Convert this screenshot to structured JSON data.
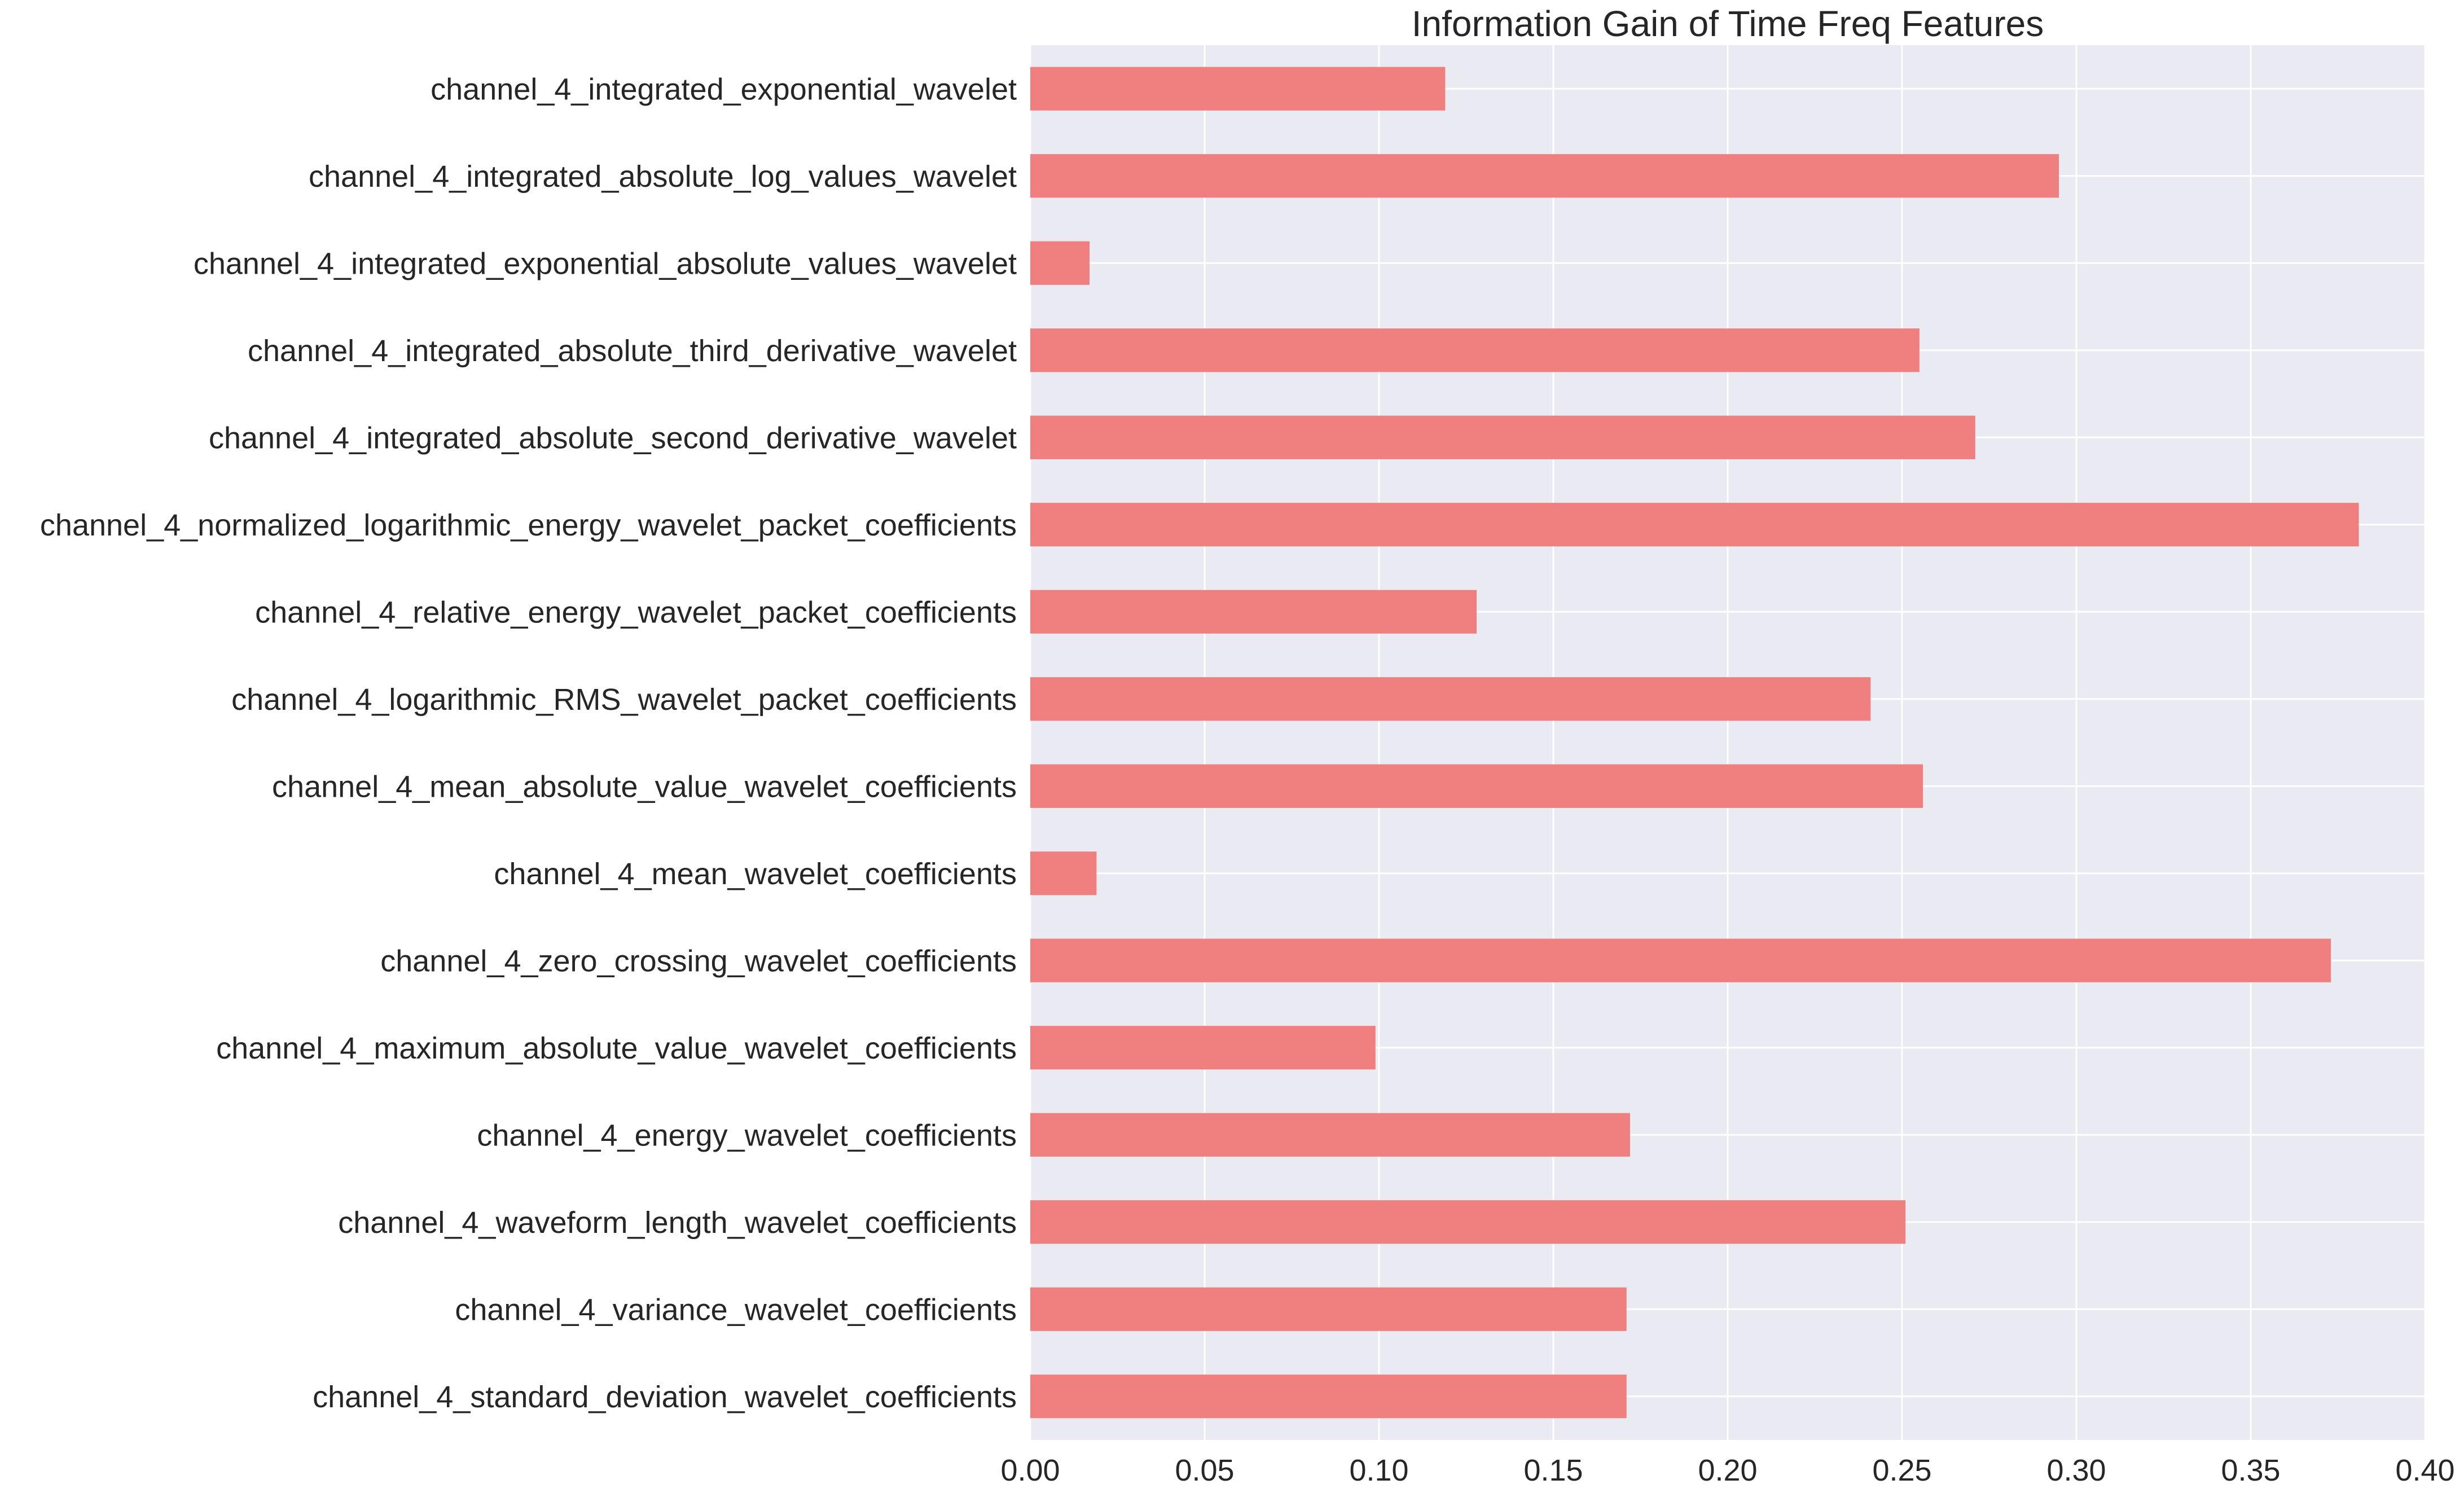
{
  "chart_data": {
    "type": "bar",
    "orientation": "horizontal",
    "title": "Information Gain of Time Freq Features",
    "xlabel": "",
    "ylabel": "",
    "xlim": [
      0.0,
      0.4
    ],
    "xticks": [
      "0.00",
      "0.05",
      "0.10",
      "0.15",
      "0.20",
      "0.25",
      "0.30",
      "0.35",
      "0.40"
    ],
    "grid": true,
    "legend": "none",
    "colors": {
      "bar": "#f08080",
      "plot_background": "#eaeaf2",
      "grid": "#ffffff",
      "text": "#262626"
    },
    "categories": [
      "channel_4_integrated_exponential_wavelet",
      "channel_4_integrated_absolute_log_values_wavelet",
      "channel_4_integrated_exponential_absolute_values_wavelet",
      "channel_4_integrated_absolute_third_derivative_wavelet",
      "channel_4_integrated_absolute_second_derivative_wavelet",
      "channel_4_normalized_logarithmic_energy_wavelet_packet_coefficients",
      "channel_4_relative_energy_wavelet_packet_coefficients",
      "channel_4_logarithmic_RMS_wavelet_packet_coefficients",
      "channel_4_mean_absolute_value_wavelet_coefficients",
      "channel_4_mean_wavelet_coefficients",
      "channel_4_zero_crossing_wavelet_coefficients",
      "channel_4_maximum_absolute_value_wavelet_coefficients",
      "channel_4_energy_wavelet_coefficients",
      "channel_4_waveform_length_wavelet_coefficients",
      "channel_4_variance_wavelet_coefficients",
      "channel_4_standard_deviation_wavelet_coefficients"
    ],
    "values": [
      0.119,
      0.295,
      0.017,
      0.255,
      0.271,
      0.381,
      0.128,
      0.241,
      0.256,
      0.019,
      0.373,
      0.099,
      0.172,
      0.251,
      0.171,
      0.171
    ]
  }
}
